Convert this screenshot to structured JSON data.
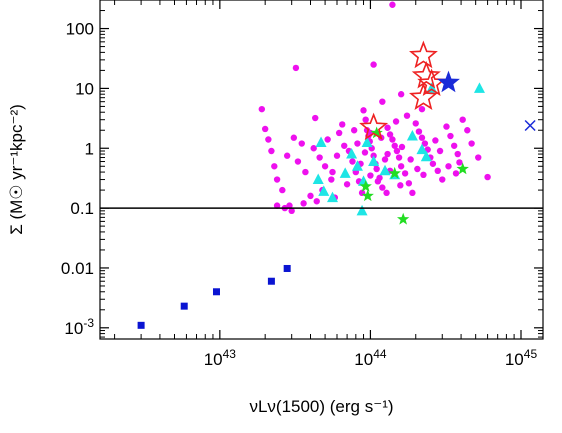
{
  "chart_data": {
    "type": "scatter",
    "title": "",
    "xlabel": "νLν(1500) (erg s⁻¹)",
    "ylabel": "Σ (M☉ yr⁻¹kpc⁻²)",
    "x_scale": "log",
    "y_scale": "log",
    "xlim": [
      1.6e+42,
      1.4e+45
    ],
    "ylim": [
      0.00065,
      300
    ],
    "grid": false,
    "legend": "none",
    "x_ticks": [
      {
        "value": 1e+43,
        "label": "10",
        "exp": "43"
      },
      {
        "value": 1e+44,
        "label": "10",
        "exp": "44"
      },
      {
        "value": 1e+45,
        "label": "10",
        "exp": "45"
      }
    ],
    "y_ticks": [
      {
        "value": 0.001,
        "label": "10",
        "exp": "-3"
      },
      {
        "value": 0.01,
        "label": "0.01",
        "exp": ""
      },
      {
        "value": 0.1,
        "label": "0.1",
        "exp": ""
      },
      {
        "value": 1,
        "label": "1",
        "exp": ""
      },
      {
        "value": 10,
        "label": "10",
        "exp": ""
      },
      {
        "value": 100,
        "label": "100",
        "exp": ""
      }
    ],
    "reference_line": {
      "y": 0.1,
      "color": "#000000"
    },
    "series": [
      {
        "marker": "square",
        "color": "#0a14d2",
        "points": [
          [
            3e+42,
            0.0011
          ],
          [
            5.8e+42,
            0.0023
          ],
          [
            9.5e+42,
            0.004
          ],
          [
            2.2e+43,
            0.006
          ],
          [
            2.8e+43,
            0.0098
          ]
        ]
      },
      {
        "marker": "circle",
        "color": "#ee10ee",
        "points": [
          [
            1.9e+43,
            4.5
          ],
          [
            2e+43,
            2.1
          ],
          [
            2.1e+43,
            1.4
          ],
          [
            2.2e+43,
            0.9
          ],
          [
            2.3e+43,
            0.5
          ],
          [
            2.4e+43,
            0.3
          ],
          [
            2.6e+43,
            0.2
          ],
          [
            2.9e+43,
            0.11
          ],
          [
            2.4e+43,
            0.11
          ],
          [
            2.7e+43,
            0.1
          ],
          [
            3e+43,
            0.09
          ],
          [
            3.6e+43,
            0.12
          ],
          [
            4e+43,
            0.16
          ],
          [
            3.3e+43,
            0.6
          ],
          [
            3.7e+43,
            0.4
          ],
          [
            3.1e+43,
            1.5
          ],
          [
            3.5e+43,
            1.2
          ],
          [
            3.2e+43,
            22
          ],
          [
            4.3e+43,
            3.2
          ],
          [
            4.2e+43,
            1.0
          ],
          [
            4.6e+43,
            0.7
          ],
          [
            5e+43,
            0.5
          ],
          [
            5.5e+43,
            0.3
          ],
          [
            4.8e+43,
            0.2
          ],
          [
            5.8e+43,
            0.15
          ],
          [
            6.2e+43,
            1.8
          ],
          [
            6.7e+43,
            1.1
          ],
          [
            7.2e+43,
            0.9
          ],
          [
            7.6e+43,
            0.6
          ],
          [
            8e+43,
            0.4
          ],
          [
            8.4e+43,
            0.28
          ],
          [
            8.8e+43,
            0.18
          ],
          [
            9e+43,
            4.3
          ],
          [
            9.3e+43,
            3.0
          ],
          [
            9.5e+43,
            2.0
          ],
          [
            9.7e+43,
            1.6
          ],
          [
            9.9e+43,
            1.3
          ],
          [
            1.02e+44,
            1.0
          ],
          [
            1.05e+44,
            0.75
          ],
          [
            1.08e+44,
            0.55
          ],
          [
            1.1e+44,
            0.45
          ],
          [
            1.15e+44,
            0.32
          ],
          [
            1.2e+44,
            0.22
          ],
          [
            1.05e+44,
            25
          ],
          [
            1.3e+44,
            2.2
          ],
          [
            1.35e+44,
            1.7
          ],
          [
            1.4e+44,
            1.4
          ],
          [
            1.45e+44,
            1.1
          ],
          [
            1.5e+44,
            0.9
          ],
          [
            1.55e+44,
            0.7
          ],
          [
            1.6e+44,
            0.5
          ],
          [
            1.7e+44,
            0.38
          ],
          [
            1.8e+44,
            0.26
          ],
          [
            1.9e+44,
            0.18
          ],
          [
            1.75e+44,
            3.5
          ],
          [
            2e+44,
            2.6
          ],
          [
            2.1e+44,
            1.9
          ],
          [
            2.2e+44,
            1.5
          ],
          [
            2.3e+44,
            1.2
          ],
          [
            2.4e+44,
            0.95
          ],
          [
            2.5e+44,
            0.7
          ],
          [
            2.6e+44,
            0.55
          ],
          [
            2.8e+44,
            0.42
          ],
          [
            3e+44,
            0.3
          ],
          [
            3.2e+44,
            2.3
          ],
          [
            3.4e+44,
            1.6
          ],
          [
            3.6e+44,
            1.1
          ],
          [
            3.8e+44,
            0.8
          ],
          [
            3.9e+44,
            0.58
          ],
          [
            4.1e+44,
            3.0
          ],
          [
            4.4e+44,
            2.0
          ],
          [
            5.2e+44,
            0.7
          ],
          [
            6e+44,
            0.33
          ],
          [
            1.4e+44,
            250
          ],
          [
            1.2e+44,
            6.0
          ],
          [
            1.6e+44,
            8.0
          ],
          [
            1.3e+44,
            0.8
          ],
          [
            1e+44,
            1.8
          ],
          [
            7e+43,
            0.25
          ],
          [
            6.5e+43,
            2.5
          ],
          [
            5.2e+43,
            1.4
          ],
          [
            4.4e+43,
            0.13
          ],
          [
            2.8e+43,
            0.75
          ],
          [
            8.2e+43,
            1.2
          ],
          [
            9.2e+43,
            0.85
          ],
          [
            1.18e+44,
            1.5
          ],
          [
            1.25e+44,
            0.65
          ],
          [
            1.35e+44,
            0.42
          ],
          [
            1.48e+44,
            2.8
          ],
          [
            1.62e+44,
            1.05
          ],
          [
            1.85e+44,
            0.65
          ],
          [
            2.05e+44,
            0.45
          ],
          [
            2.25e+44,
            0.36
          ],
          [
            2.7e+44,
            1.35
          ],
          [
            2.9e+44,
            0.9
          ],
          [
            3.3e+44,
            0.5
          ],
          [
            3.7e+44,
            0.38
          ],
          [
            4.7e+44,
            1.2
          ],
          [
            2.2e+44,
            4.5
          ],
          [
            1.12e+44,
            0.28
          ],
          [
            7.8e+43,
            2.0
          ],
          [
            6e+43,
            0.75
          ],
          [
            5.6e+43,
            0.4
          ],
          [
            8.6e+43,
            0.55
          ],
          [
            1e+44,
            0.35
          ],
          [
            1.28e+44,
            0.18
          ],
          [
            1.58e+44,
            0.24
          ]
        ]
      },
      {
        "marker": "triangle",
        "color": "#1ee5e5",
        "points": [
          [
            4.7e+43,
            1.25
          ],
          [
            4.5e+43,
            0.3
          ],
          [
            4.9e+43,
            0.19
          ],
          [
            5.6e+43,
            0.15
          ],
          [
            6.8e+43,
            0.38
          ],
          [
            7.5e+43,
            0.8
          ],
          [
            8.2e+43,
            0.5
          ],
          [
            9e+43,
            0.28
          ],
          [
            1.05e+44,
            0.6
          ],
          [
            1.25e+44,
            0.42
          ],
          [
            1.45e+44,
            0.36
          ],
          [
            8.8e+43,
            0.09
          ],
          [
            1.9e+44,
            1.6
          ],
          [
            2.2e+44,
            0.95
          ],
          [
            2.35e+44,
            0.72
          ],
          [
            2.55e+44,
            10.0
          ],
          [
            5.3e+44,
            10.0
          ],
          [
            9.5e+43,
            1.25
          ]
        ]
      },
      {
        "marker": "star",
        "color": "#22dd22",
        "points": [
          [
            9.3e+43,
            0.23
          ],
          [
            9.6e+43,
            0.16
          ],
          [
            1.45e+44,
            0.38
          ],
          [
            1.65e+44,
            0.065
          ],
          [
            4.1e+44,
            0.45
          ],
          [
            1.1e+44,
            1.8
          ]
        ]
      },
      {
        "marker": "open-star",
        "color": "#ee2222",
        "size": "large",
        "points": [
          [
            2.25e+44,
            35
          ],
          [
            2.35e+44,
            16
          ],
          [
            2.55e+44,
            12
          ],
          [
            2.25e+44,
            7
          ],
          [
            1.05e+44,
            2.2
          ]
        ]
      },
      {
        "marker": "filled-star",
        "color": "#1a2bd8",
        "size": "large",
        "points": [
          [
            3.3e+44,
            12.5
          ]
        ]
      },
      {
        "marker": "cross",
        "color": "#1a2bd8",
        "points": [
          [
            1.15e+45,
            2.4
          ]
        ]
      }
    ]
  }
}
